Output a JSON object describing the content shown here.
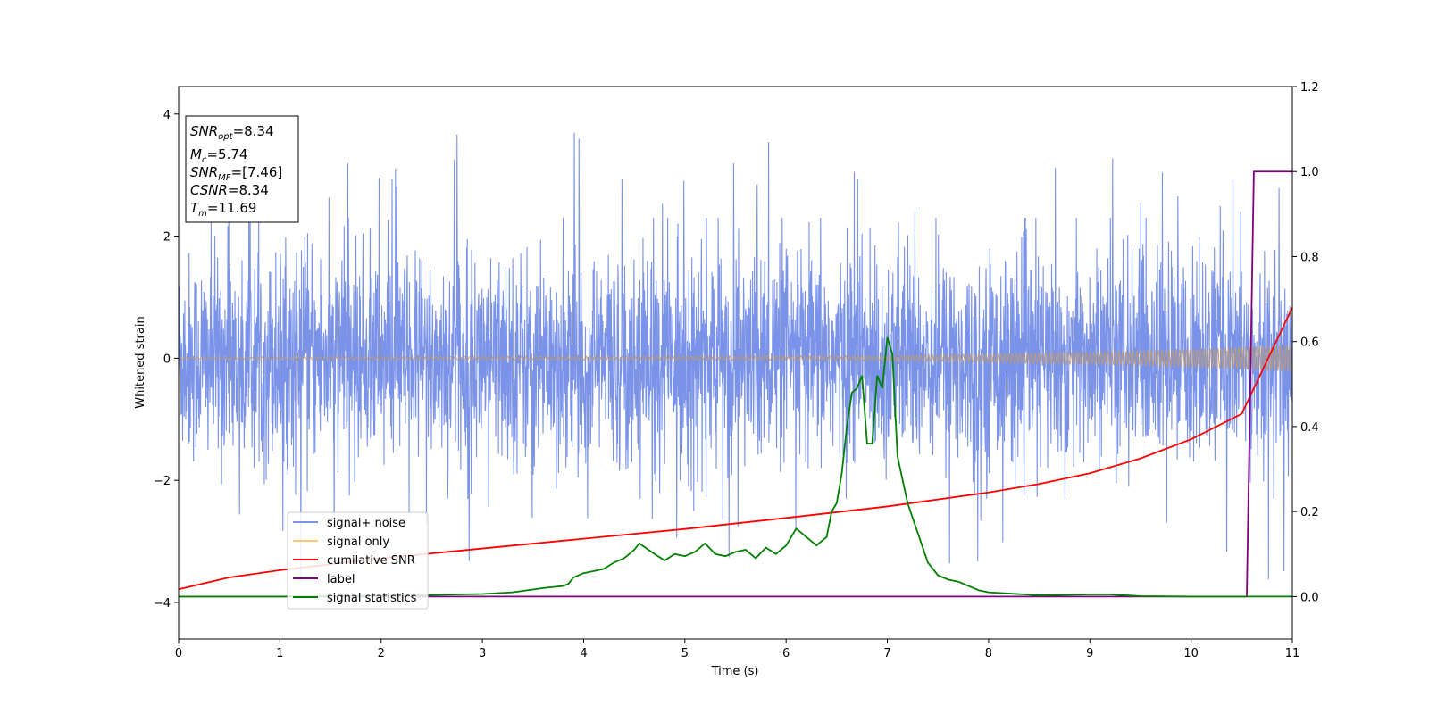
{
  "chart_data": {
    "type": "line",
    "xlabel": "Time (s)",
    "ylabel": "Whitened strain",
    "xlim": [
      0,
      11
    ],
    "ylim": [
      -4.6,
      4.45
    ],
    "y2lim": [
      -0.1,
      1.2
    ],
    "x_ticks": [
      "0",
      "1",
      "2",
      "3",
      "4",
      "5",
      "6",
      "7",
      "8",
      "9",
      "10",
      "11"
    ],
    "y_ticks": [
      "4",
      "2",
      "0",
      "−2",
      "−4"
    ],
    "y2_ticks": [
      "1.2",
      "1.0",
      "0.8",
      "0.6",
      "0.4",
      "0.2",
      "0.0"
    ],
    "y_tick_values": [
      4,
      2,
      0,
      -2,
      -4
    ],
    "y2_tick_values": [
      1.2,
      1.0,
      0.8,
      0.6,
      0.4,
      0.2,
      0.0
    ],
    "grid": false,
    "legend_placement": "lower-left",
    "legend": [
      {
        "label": "signal+ noise",
        "color": "#7a93e8"
      },
      {
        "label": "signal only",
        "color": "#ffc870"
      },
      {
        "label": "cumilative SNR",
        "color": "#ff0000"
      },
      {
        "label": "label",
        "color": "#800080"
      },
      {
        "label": "signal statistics",
        "color": "#008000"
      }
    ],
    "info_box": [
      {
        "base": "SNR",
        "sub": "opt",
        "rest": "=8.34"
      },
      {
        "base": "M",
        "sub": "c",
        "rest": "=5.74"
      },
      {
        "base": "SNR",
        "sub": "MF",
        "rest": "=[7.46]"
      },
      {
        "base": "CSNR",
        "sub": "",
        "rest": "=8.34"
      },
      {
        "base": "T",
        "sub": "m",
        "rest": "=11.69"
      }
    ],
    "series": [
      {
        "name": "signal+ noise",
        "axis": "left",
        "color": "#7a93e8",
        "noise_band": {
          "typical_abs_max": 2.3,
          "extreme_max": 4.05,
          "extreme_min": -4.15
        }
      },
      {
        "name": "signal only",
        "axis": "left",
        "color": "#ffc870",
        "envelope": {
          "x": [
            0,
            7,
            8,
            9,
            10,
            11
          ],
          "amplitude": [
            0.02,
            0.04,
            0.07,
            0.1,
            0.15,
            0.22
          ]
        }
      },
      {
        "name": "cumilative SNR",
        "axis": "right",
        "color": "#ff0000",
        "x": [
          0,
          0.5,
          1,
          2,
          3,
          4,
          5,
          6,
          7,
          8,
          8.5,
          9,
          9.5,
          10,
          10.5,
          11
        ],
        "y": [
          0.017,
          0.045,
          0.062,
          0.09,
          0.113,
          0.136,
          0.159,
          0.185,
          0.212,
          0.245,
          0.265,
          0.29,
          0.325,
          0.37,
          0.43,
          0.68
        ]
      },
      {
        "name": "label",
        "axis": "right",
        "color": "#800080",
        "x": [
          0,
          10.55,
          10.62,
          11
        ],
        "y": [
          0.0,
          0.0,
          1.0,
          1.0
        ]
      },
      {
        "name": "signal statistics",
        "axis": "right",
        "color": "#008000",
        "x": [
          0,
          1,
          2,
          3,
          3.3,
          3.6,
          3.8,
          3.85,
          3.9,
          4.0,
          4.1,
          4.2,
          4.3,
          4.4,
          4.5,
          4.55,
          4.7,
          4.8,
          4.9,
          5.0,
          5.1,
          5.2,
          5.3,
          5.4,
          5.5,
          5.6,
          5.7,
          5.8,
          5.9,
          6.0,
          6.1,
          6.2,
          6.3,
          6.35,
          6.4,
          6.45,
          6.5,
          6.55,
          6.6,
          6.65,
          6.7,
          6.75,
          6.8,
          6.85,
          6.9,
          6.95,
          7.0,
          7.05,
          7.1,
          7.2,
          7.3,
          7.4,
          7.5,
          7.6,
          7.7,
          7.8,
          7.9,
          8.0,
          8.5,
          9.0,
          9.2,
          9.5,
          10.0,
          10.5,
          11.0
        ],
        "y": [
          0.0,
          0.0,
          0.002,
          0.006,
          0.01,
          0.02,
          0.025,
          0.03,
          0.045,
          0.055,
          0.06,
          0.065,
          0.08,
          0.09,
          0.11,
          0.125,
          0.1,
          0.085,
          0.1,
          0.095,
          0.105,
          0.125,
          0.1,
          0.095,
          0.105,
          0.11,
          0.09,
          0.115,
          0.1,
          0.12,
          0.16,
          0.14,
          0.12,
          0.13,
          0.14,
          0.2,
          0.22,
          0.29,
          0.4,
          0.48,
          0.49,
          0.52,
          0.36,
          0.36,
          0.52,
          0.49,
          0.61,
          0.57,
          0.33,
          0.22,
          0.15,
          0.08,
          0.05,
          0.04,
          0.035,
          0.025,
          0.015,
          0.01,
          0.003,
          0.005,
          0.005,
          0.001,
          0.0,
          0.0,
          0.0
        ]
      }
    ]
  }
}
